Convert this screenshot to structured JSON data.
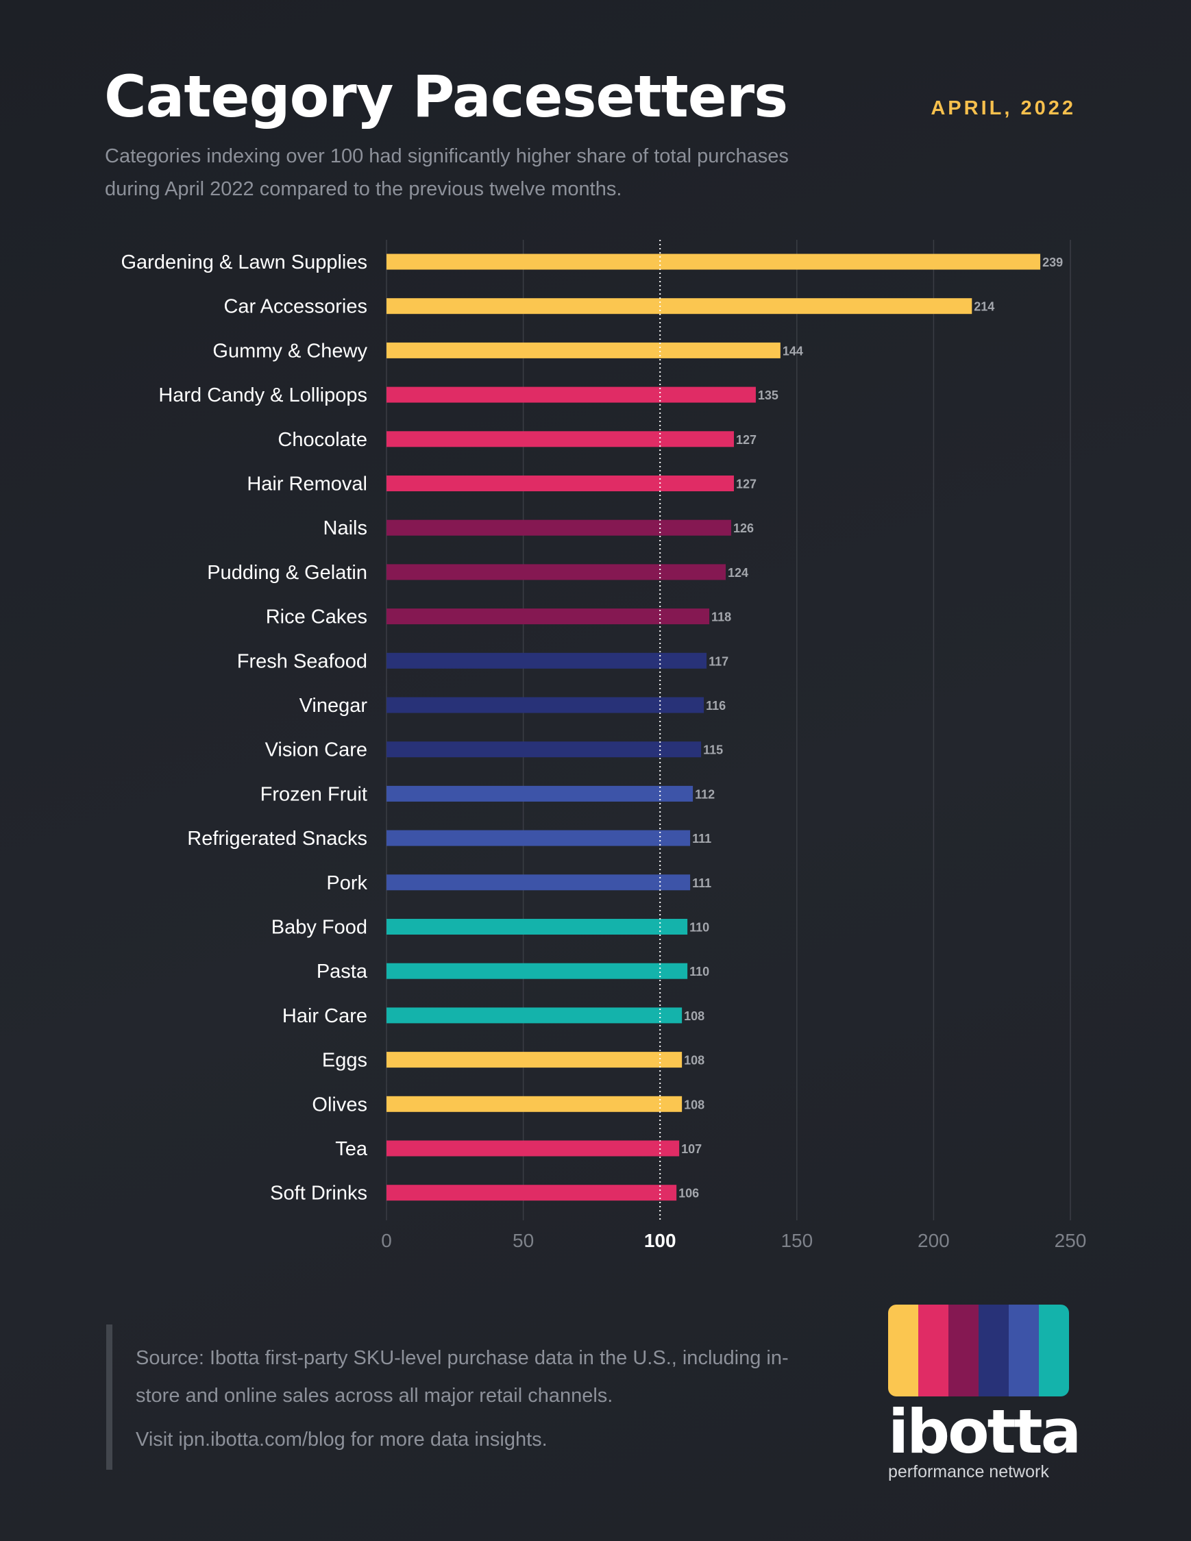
{
  "header": {
    "title": "Category Pacesetters",
    "date": "APRIL, 2022",
    "subtitle": "Categories indexing over 100 had significantly higher share of total purchases during April 2022 compared to the previous twelve months."
  },
  "colors": {
    "yellow": "#fbc650",
    "pink": "#e02c65",
    "plum": "#851852",
    "navy": "#283278",
    "blue": "#3d54a8",
    "teal": "#14b3ab",
    "gridline": "#3a3d44",
    "reference_line": "#ffffff",
    "background": "#202329"
  },
  "chart_data": {
    "type": "bar",
    "orientation": "horizontal",
    "categories": [
      "Gardening & Lawn Supplies",
      "Car Accessories",
      "Gummy & Chewy",
      "Hard Candy & Lollipops",
      "Chocolate",
      "Hair Removal",
      "Nails",
      "Pudding & Gelatin",
      "Rice Cakes",
      "Fresh Seafood",
      "Vinegar",
      "Vision Care",
      "Frozen Fruit",
      "Refrigerated Snacks",
      "Pork",
      "Baby Food",
      "Pasta",
      "Hair Care",
      "Eggs",
      "Olives",
      "Tea",
      "Soft Drinks"
    ],
    "values": [
      239,
      214,
      144,
      135,
      127,
      127,
      126,
      124,
      118,
      117,
      116,
      115,
      112,
      111,
      111,
      110,
      110,
      108,
      108,
      108,
      107,
      106
    ],
    "bar_colors": [
      "yellow",
      "yellow",
      "yellow",
      "pink",
      "pink",
      "pink",
      "plum",
      "plum",
      "plum",
      "navy",
      "navy",
      "navy",
      "blue",
      "blue",
      "blue",
      "teal",
      "teal",
      "teal",
      "yellow",
      "yellow",
      "pink",
      "pink"
    ],
    "xlim": [
      0,
      250
    ],
    "xticks": [
      0,
      50,
      100,
      150,
      200,
      250
    ],
    "reference_line": 100,
    "grid": true,
    "title": "Category Pacesetters",
    "xlabel": "",
    "ylabel": ""
  },
  "footer": {
    "source": "Source: Ibotta first-party SKU-level purchase data in the U.S., including in-store and online sales across all major retail channels.",
    "visit": "Visit ipn.ibotta.com/blog for more data insights."
  },
  "logo": {
    "wordmark": "ibotta",
    "tagline": "performance network",
    "stripes": [
      "yellow",
      "pink",
      "plum",
      "navy",
      "blue",
      "teal"
    ]
  }
}
